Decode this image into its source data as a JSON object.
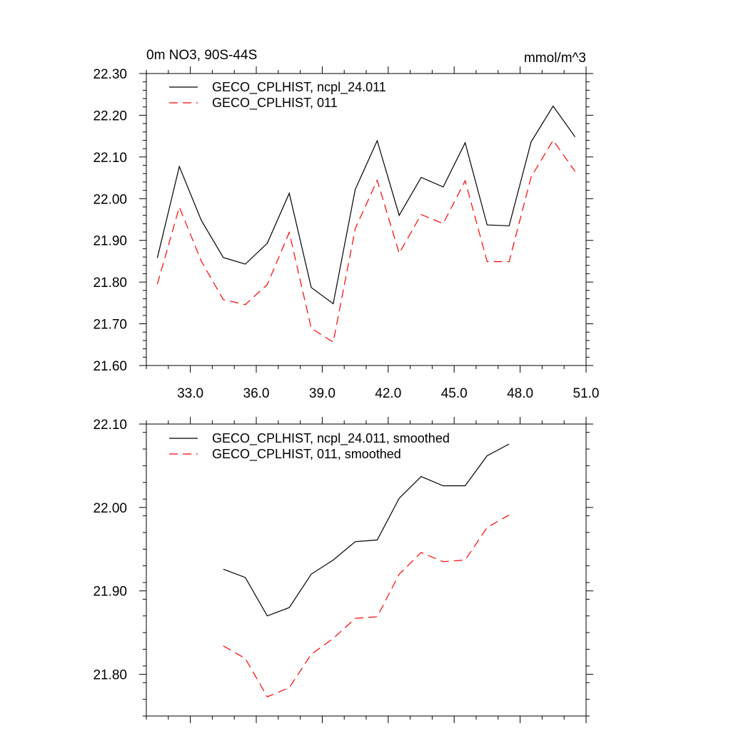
{
  "chart_data": [
    {
      "type": "line",
      "title_left": "0m NO3, 90S-44S",
      "title_right": "mmol/m^3",
      "xlabel": "",
      "ylabel": "",
      "xlim": [
        31.0,
        51.0
      ],
      "ylim": [
        21.6,
        22.3
      ],
      "x_ticks": [
        33.0,
        36.0,
        39.0,
        42.0,
        45.0,
        48.0,
        51.0
      ],
      "x_tick_labels": [
        "33.0",
        "36.0",
        "39.0",
        "42.0",
        "45.0",
        "48.0",
        "51.0"
      ],
      "y_ticks": [
        21.6,
        21.7,
        21.8,
        21.9,
        22.0,
        22.1,
        22.2,
        22.3
      ],
      "y_tick_labels": [
        "21.60",
        "21.70",
        "21.80",
        "21.90",
        "22.00",
        "22.10",
        "22.20",
        "22.30"
      ],
      "grid": false,
      "legend_position": "top-left",
      "x": [
        31.5,
        32.5,
        33.5,
        34.5,
        35.5,
        36.5,
        37.5,
        38.5,
        39.5,
        40.5,
        41.5,
        42.5,
        43.5,
        44.5,
        45.5,
        46.5,
        47.5,
        48.5,
        49.5,
        50.5
      ],
      "series": [
        {
          "name": "GECO_CPLHIST, ncpl_24.011",
          "color": "#000000",
          "dash": "solid",
          "values": [
            21.858,
            22.077,
            21.948,
            21.859,
            21.843,
            21.893,
            22.013,
            21.787,
            21.748,
            22.022,
            22.139,
            21.96,
            22.051,
            22.028,
            22.134,
            21.937,
            21.935,
            22.136,
            22.222,
            22.148
          ]
        },
        {
          "name": "GECO_CPLHIST, 011",
          "color": "#ff0000",
          "dash": "dashed",
          "values": [
            21.795,
            21.98,
            21.85,
            21.758,
            21.746,
            21.794,
            21.919,
            21.689,
            21.656,
            21.928,
            22.044,
            21.869,
            21.962,
            21.94,
            22.043,
            21.849,
            21.849,
            22.052,
            22.14,
            22.065
          ]
        }
      ]
    },
    {
      "type": "line",
      "title_left": "",
      "title_right": "",
      "xlabel": "",
      "ylabel": "",
      "xlim": [
        31.0,
        51.0
      ],
      "ylim": [
        21.75,
        22.1
      ],
      "x_ticks": [
        33.0,
        36.0,
        39.0,
        42.0,
        45.0,
        48.0,
        51.0
      ],
      "y_ticks": [
        21.8,
        21.9,
        22.0,
        22.1
      ],
      "y_tick_labels": [
        "21.80",
        "21.90",
        "22.00",
        "22.10"
      ],
      "grid": false,
      "legend_position": "top-left",
      "x": [
        34.5,
        35.5,
        36.5,
        37.5,
        38.5,
        39.5,
        40.5,
        41.5,
        42.5,
        43.5,
        44.5,
        45.5,
        46.5,
        47.5
      ],
      "series": [
        {
          "name": "GECO_CPLHIST, ncpl_24.011, smoothed",
          "color": "#000000",
          "dash": "solid",
          "values": [
            21.926,
            21.916,
            21.87,
            21.88,
            21.92,
            21.937,
            21.959,
            21.961,
            22.011,
            22.037,
            22.026,
            22.026,
            22.062,
            22.076
          ]
        },
        {
          "name": "GECO_CPLHIST, 011, smoothed",
          "color": "#ff0000",
          "dash": "dashed",
          "values": [
            21.834,
            21.819,
            21.773,
            21.784,
            21.824,
            21.843,
            21.867,
            21.869,
            21.92,
            21.946,
            21.935,
            21.937,
            21.976,
            21.991
          ]
        }
      ]
    }
  ]
}
